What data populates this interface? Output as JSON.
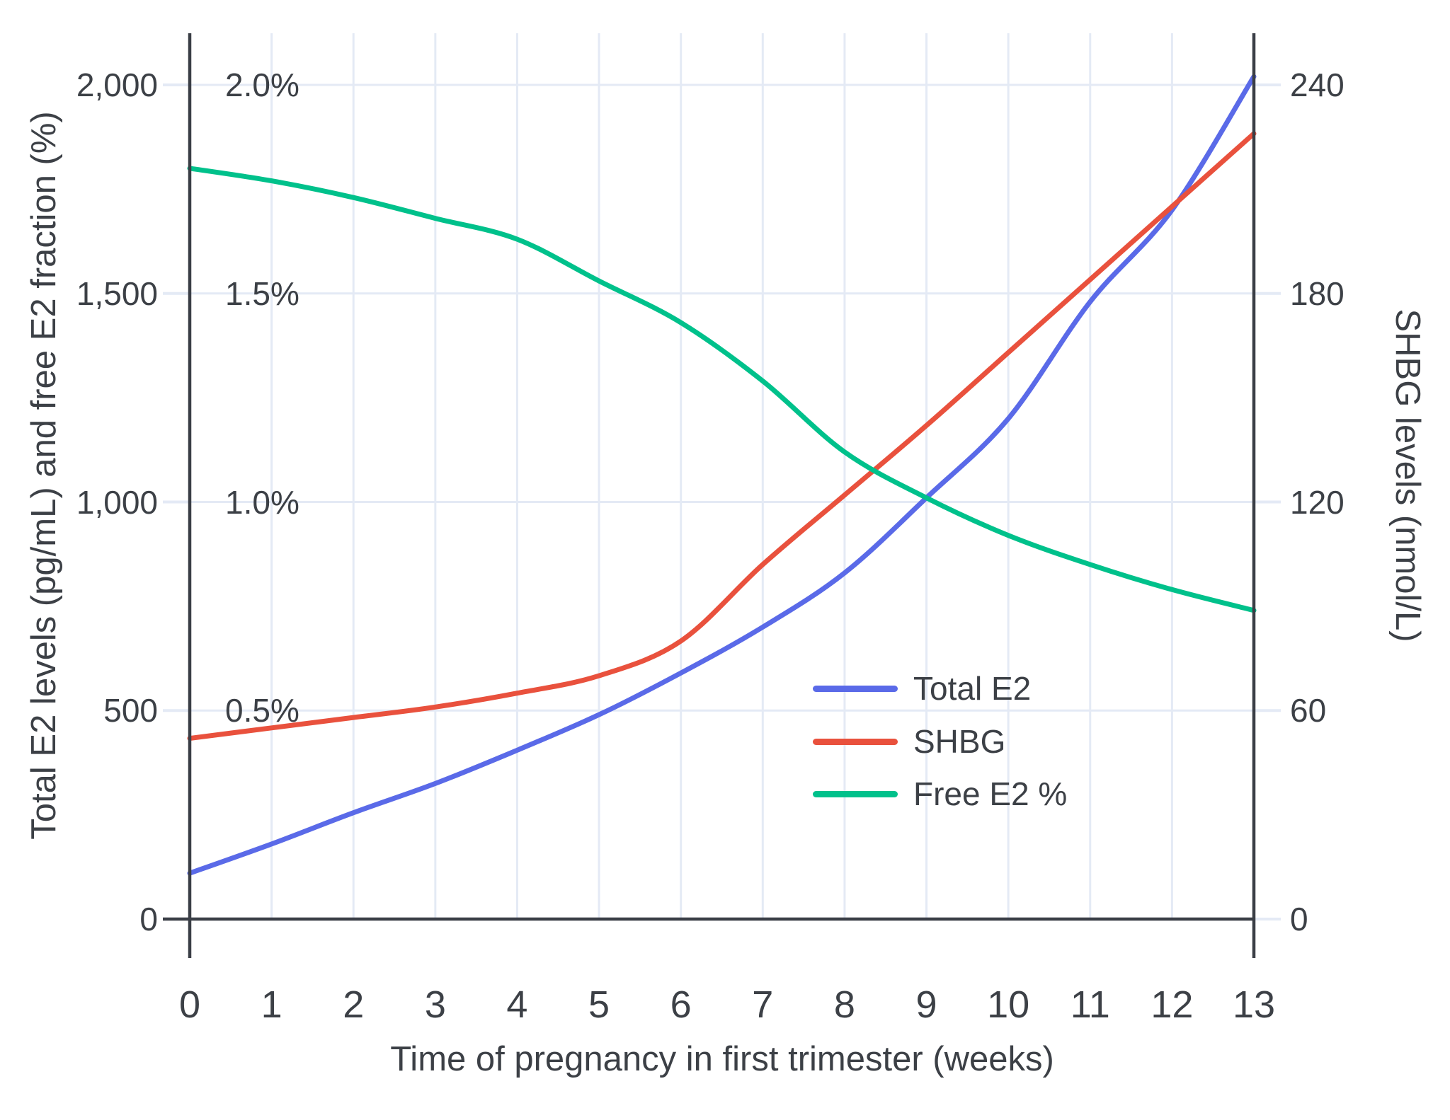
{
  "chart_data": {
    "type": "line",
    "x": [
      0,
      1,
      2,
      3,
      4,
      5,
      6,
      7,
      8,
      9,
      10,
      11,
      12,
      13
    ],
    "x_unit": "weeks",
    "xlabel": "Time of pregnancy in first trimester (weeks)",
    "ylabel_left": "Total E2 levels (pg/mL) and free E2 fraction (%)",
    "ylabel_right": "SHBG levels (nmol/L)",
    "x_tick_labels": [
      "0",
      "1",
      "2",
      "3",
      "4",
      "5",
      "6",
      "7",
      "8",
      "9",
      "10",
      "11",
      "12",
      "13"
    ],
    "y_left_ticks": [
      {
        "value": 0,
        "label": "0"
      },
      {
        "value": 500,
        "label": "500"
      },
      {
        "value": 1000,
        "label": "1,000"
      },
      {
        "value": 1500,
        "label": "1,500"
      },
      {
        "value": 2000,
        "label": "2,000"
      }
    ],
    "y_left_percent_labels": [
      {
        "value": 0.5,
        "label": "0.5%"
      },
      {
        "value": 1.0,
        "label": "1.0%"
      },
      {
        "value": 1.5,
        "label": "1.5%"
      },
      {
        "value": 2.0,
        "label": "2.0%"
      }
    ],
    "y_right_ticks": [
      {
        "value": 0,
        "label": "0"
      },
      {
        "value": 60,
        "label": "60"
      },
      {
        "value": 120,
        "label": "120"
      },
      {
        "value": 180,
        "label": "180"
      },
      {
        "value": 240,
        "label": "240"
      }
    ],
    "y_left_range": [
      0,
      2100
    ],
    "y_right_range": [
      0,
      252
    ],
    "grid": true,
    "legend_position": "inside-lower-right",
    "series": [
      {
        "name": "Total E2",
        "axis": "left",
        "unit": "pg/mL",
        "color": "#5a6ae8",
        "values": [
          110,
          180,
          255,
          325,
          405,
          490,
          590,
          700,
          830,
          1010,
          1200,
          1480,
          1700,
          2020
        ]
      },
      {
        "name": "SHBG",
        "axis": "right",
        "unit": "nmol/L",
        "color": "#e9513d",
        "values": [
          52,
          55,
          58,
          61,
          65,
          70,
          80,
          102,
          122,
          142,
          163,
          184,
          205,
          226
        ]
      },
      {
        "name": "Free E2 %",
        "axis": "percent",
        "unit": "%",
        "color": "#00c18b",
        "values": [
          1.8,
          1.77,
          1.73,
          1.68,
          1.63,
          1.53,
          1.43,
          1.29,
          1.12,
          1.01,
          0.92,
          0.85,
          0.79,
          0.74
        ]
      }
    ]
  },
  "styles": {
    "background": "#ffffff",
    "grid_color": "#e4eaf5",
    "axis_color": "#3a3e46",
    "text_color": "#3c4046"
  }
}
